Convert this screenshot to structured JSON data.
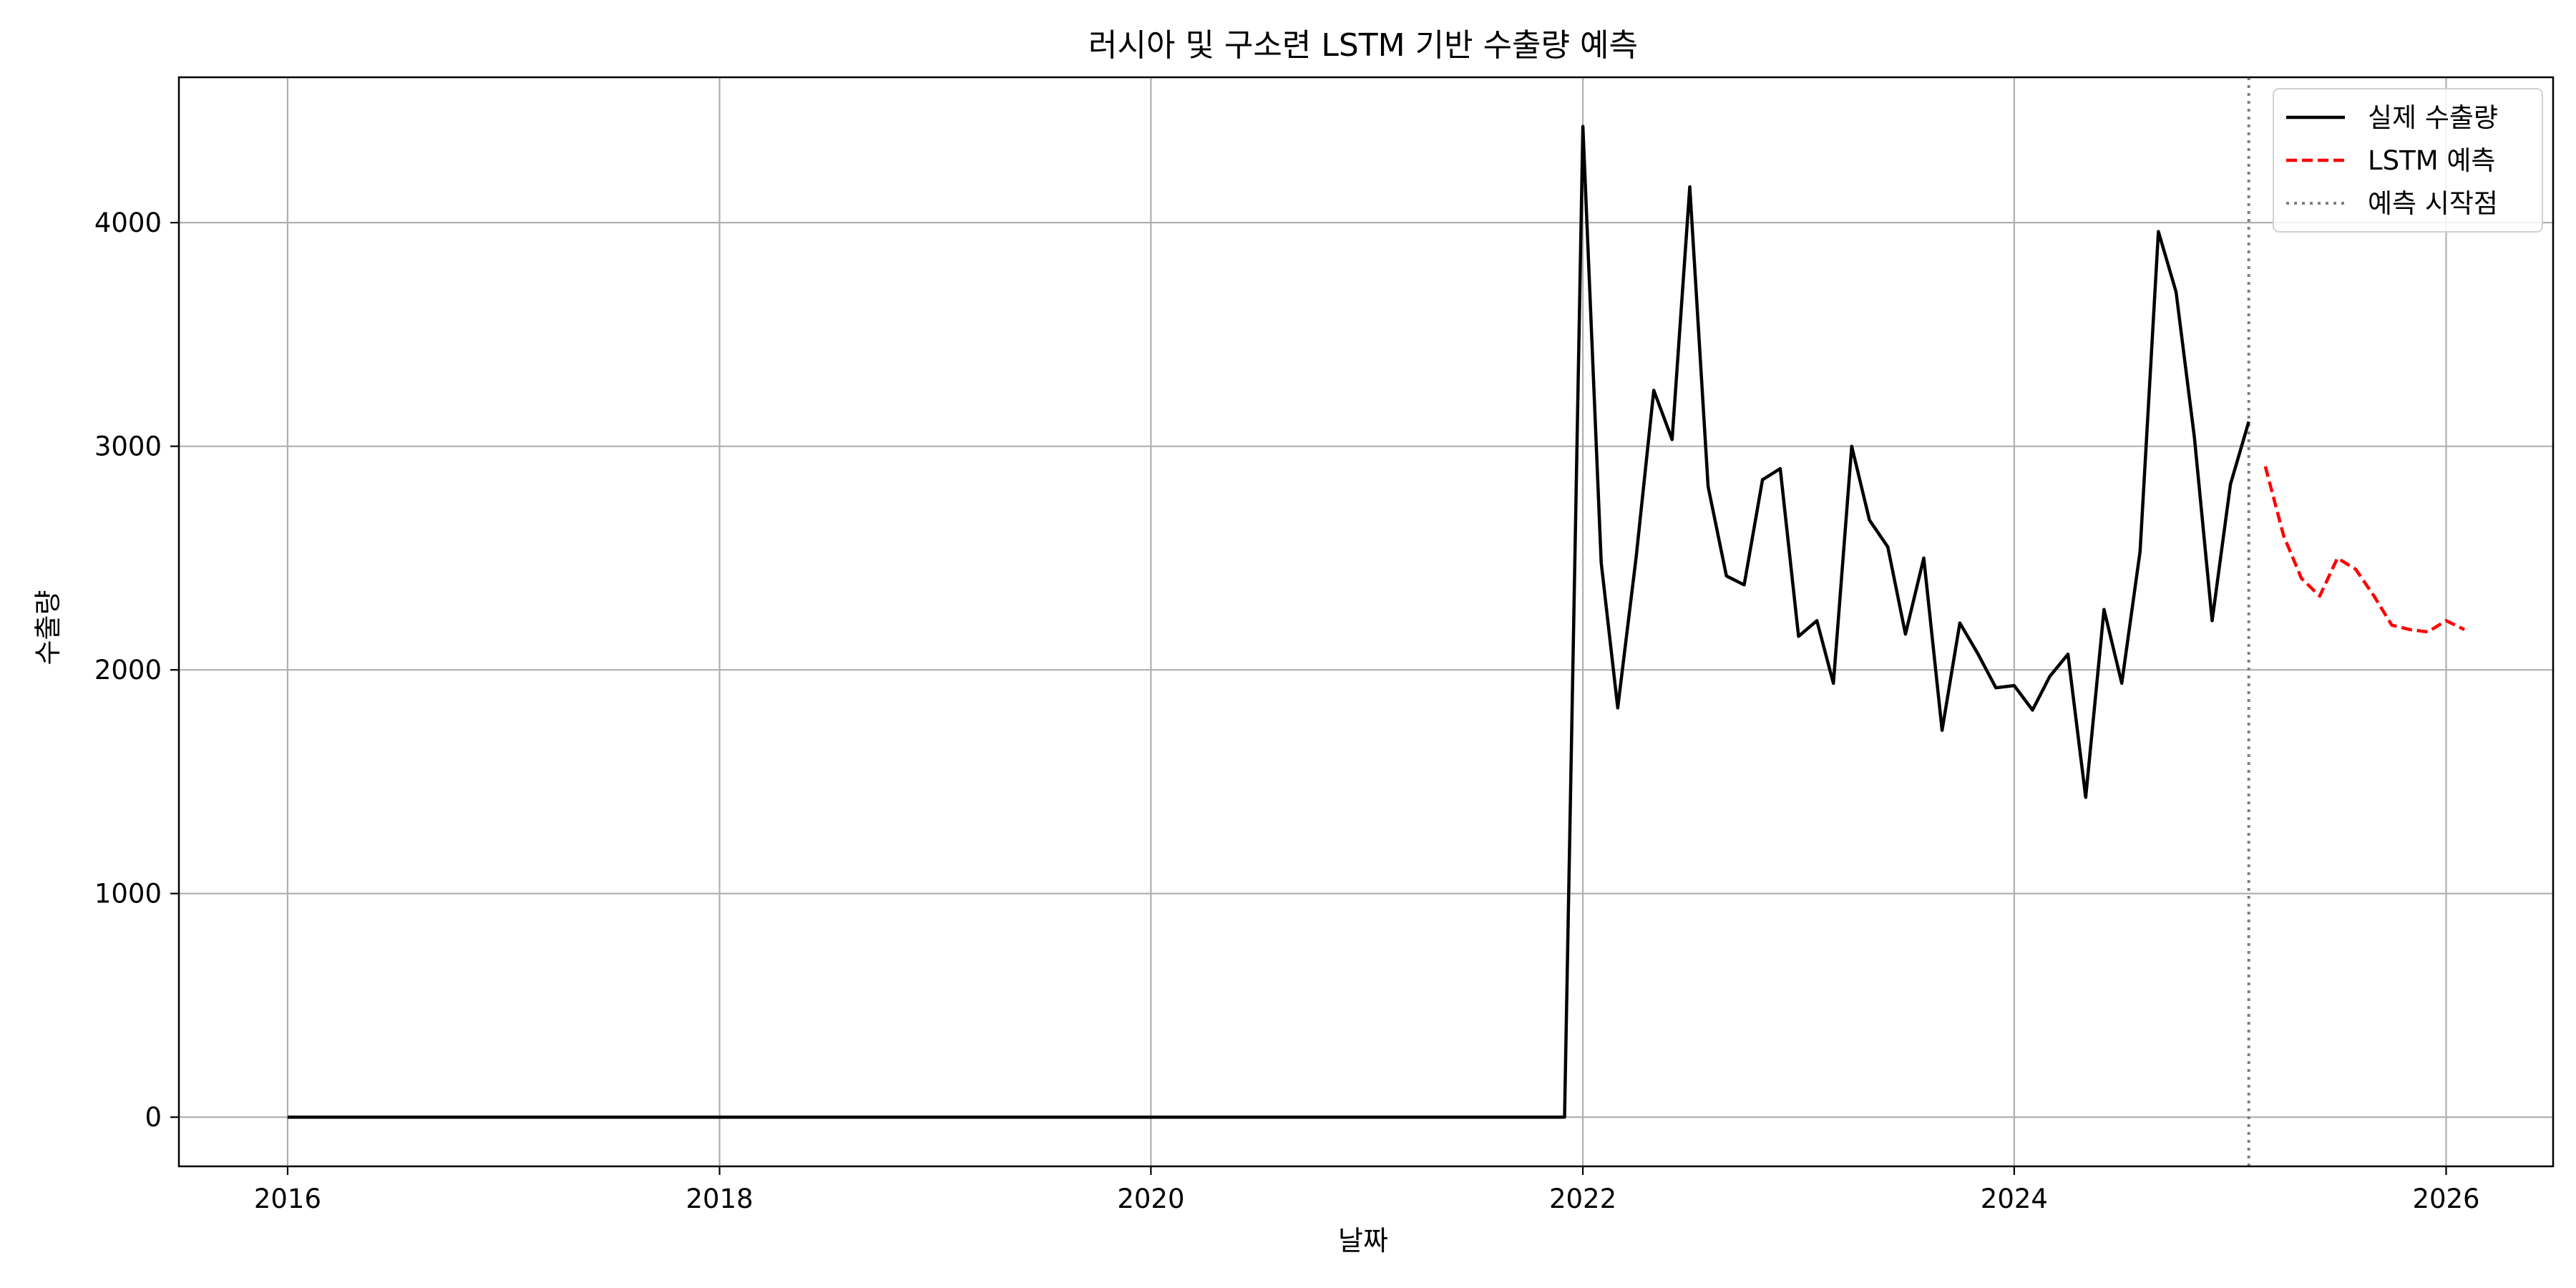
{
  "chart_data": {
    "type": "line",
    "title": "러시아 및 구소련 LSTM 기반 수출량 예측",
    "xlabel": "날짜",
    "ylabel": "수출량",
    "x_ticks": [
      "2016",
      "2018",
      "2020",
      "2022",
      "2024",
      "2026"
    ],
    "y_ticks": [
      "0",
      "1000",
      "2000",
      "3000",
      "4000"
    ],
    "xlim": [
      "2015-07-01",
      "2026-07-01"
    ],
    "ylim": [
      -220,
      4650
    ],
    "grid": true,
    "legend_position": "top-right",
    "forecast_start": "2025-02-01",
    "series": [
      {
        "name": "실제 수출량",
        "style": "solid",
        "color": "#000000",
        "points": [
          [
            "2016-01-01",
            0
          ],
          [
            "2017-01-01",
            0
          ],
          [
            "2018-01-01",
            0
          ],
          [
            "2019-01-01",
            0
          ],
          [
            "2020-01-01",
            0
          ],
          [
            "2021-01-01",
            0
          ],
          [
            "2021-12-01",
            0
          ],
          [
            "2022-01-01",
            4430
          ],
          [
            "2022-02-01",
            2480
          ],
          [
            "2022-03-01",
            1830
          ],
          [
            "2022-04-01",
            2500
          ],
          [
            "2022-05-01",
            3250
          ],
          [
            "2022-06-01",
            3030
          ],
          [
            "2022-07-01",
            4160
          ],
          [
            "2022-08-01",
            2820
          ],
          [
            "2022-09-01",
            2420
          ],
          [
            "2022-10-01",
            2380
          ],
          [
            "2022-11-01",
            2850
          ],
          [
            "2022-12-01",
            2900
          ],
          [
            "2023-01-01",
            2150
          ],
          [
            "2023-02-01",
            2220
          ],
          [
            "2023-03-01",
            1940
          ],
          [
            "2023-04-01",
            3000
          ],
          [
            "2023-05-01",
            2670
          ],
          [
            "2023-06-01",
            2550
          ],
          [
            "2023-07-01",
            2160
          ],
          [
            "2023-08-01",
            2500
          ],
          [
            "2023-09-01",
            1730
          ],
          [
            "2023-10-01",
            2210
          ],
          [
            "2023-11-01",
            2070
          ],
          [
            "2023-12-01",
            1920
          ],
          [
            "2024-01-01",
            1930
          ],
          [
            "2024-02-01",
            1820
          ],
          [
            "2024-03-01",
            1970
          ],
          [
            "2024-04-01",
            2070
          ],
          [
            "2024-05-01",
            1430
          ],
          [
            "2024-06-01",
            2270
          ],
          [
            "2024-07-01",
            1940
          ],
          [
            "2024-08-01",
            2530
          ],
          [
            "2024-09-01",
            3960
          ],
          [
            "2024-10-01",
            3690
          ],
          [
            "2024-11-01",
            3040
          ],
          [
            "2024-12-01",
            2220
          ],
          [
            "2025-01-01",
            2830
          ],
          [
            "2025-02-01",
            3110
          ]
        ]
      },
      {
        "name": "LSTM 예측",
        "style": "dashed",
        "color": "#ff0000",
        "points": [
          [
            "2025-03-01",
            2910
          ],
          [
            "2025-04-01",
            2600
          ],
          [
            "2025-05-01",
            2410
          ],
          [
            "2025-06-01",
            2330
          ],
          [
            "2025-07-01",
            2500
          ],
          [
            "2025-08-01",
            2450
          ],
          [
            "2025-09-01",
            2330
          ],
          [
            "2025-10-01",
            2200
          ],
          [
            "2025-11-01",
            2180
          ],
          [
            "2025-12-01",
            2170
          ],
          [
            "2026-01-01",
            2220
          ],
          [
            "2026-02-01",
            2180
          ]
        ]
      }
    ],
    "vline_label": "예측 시작점",
    "colors": {
      "actual": "#000000",
      "forecast": "#ff0000",
      "vline": "#808080",
      "grid": "#b0b0b0"
    }
  }
}
